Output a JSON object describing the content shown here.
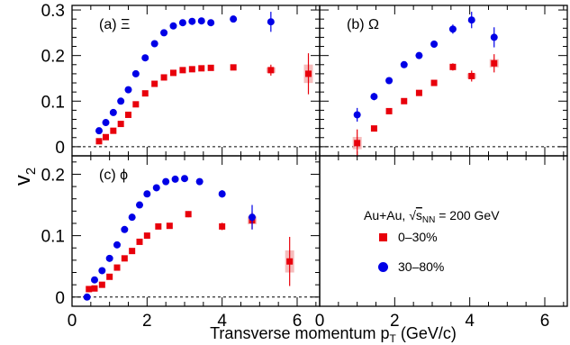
{
  "chart_data": {
    "type": "scatter",
    "xlabel": "Transverse momentum p",
    "xlabel_sub": "T",
    "xlabel_unit": "(GeV/c)",
    "ylabel": "v",
    "ylabel_sub": "2",
    "xlim": [
      0,
      6.6
    ],
    "xticks": [
      "0",
      "2",
      "4",
      "6"
    ],
    "colors": {
      "central": "#e8000b",
      "peripheral": "#0000e6",
      "syst": "#f4b0b0"
    },
    "legend": {
      "system": "Au+Au, ",
      "sqrt": "s",
      "sqrt_sub": "NN",
      "energy": " = 200 GeV",
      "entries": [
        {
          "label": "0–30%",
          "marker": "square",
          "color": "#e8000b"
        },
        {
          "label": "30–80%",
          "marker": "circle",
          "color": "#0000e6"
        }
      ]
    },
    "panels": [
      {
        "label": "(a) Ξ",
        "ylim": [
          -0.02,
          0.31
        ],
        "yticks": [
          "0",
          "0.1",
          "0.2",
          "0.3"
        ],
        "series": [
          {
            "name": "0–30%",
            "marker": "square",
            "points": [
              [
                0.72,
                0.012,
                0.004
              ],
              [
                0.9,
                0.021,
                0.004
              ],
              [
                1.1,
                0.035,
                0.004
              ],
              [
                1.3,
                0.05,
                0.004
              ],
              [
                1.5,
                0.07,
                0.004
              ],
              [
                1.7,
                0.093,
                0.004
              ],
              [
                1.95,
                0.117,
                0.004
              ],
              [
                2.2,
                0.138,
                0.004
              ],
              [
                2.45,
                0.152,
                0.004
              ],
              [
                2.7,
                0.162,
                0.004
              ],
              [
                2.95,
                0.168,
                0.004
              ],
              [
                3.2,
                0.17,
                0.004
              ],
              [
                3.45,
                0.172,
                0.004
              ],
              [
                3.7,
                0.173,
                0.004
              ],
              [
                4.3,
                0.174,
                0.005
              ],
              [
                5.3,
                0.168,
                0.012
              ],
              [
                6.3,
                0.16,
                0.045
              ]
            ]
          },
          {
            "name": "30–80%",
            "marker": "circle",
            "points": [
              [
                0.72,
                0.035,
                0.004
              ],
              [
                0.9,
                0.053,
                0.004
              ],
              [
                1.1,
                0.075,
                0.004
              ],
              [
                1.3,
                0.1,
                0.004
              ],
              [
                1.5,
                0.125,
                0.004
              ],
              [
                1.7,
                0.16,
                0.004
              ],
              [
                1.95,
                0.195,
                0.004
              ],
              [
                2.2,
                0.226,
                0.004
              ],
              [
                2.45,
                0.25,
                0.004
              ],
              [
                2.7,
                0.265,
                0.004
              ],
              [
                2.95,
                0.272,
                0.004
              ],
              [
                3.2,
                0.275,
                0.004
              ],
              [
                3.45,
                0.276,
                0.004
              ],
              [
                3.7,
                0.272,
                0.004
              ],
              [
                4.3,
                0.28,
                0.006
              ],
              [
                5.3,
                0.274,
                0.022
              ]
            ]
          }
        ]
      },
      {
        "label": "(b) Ω",
        "ylim": [
          -0.02,
          0.31
        ],
        "yticks": [],
        "series": [
          {
            "name": "0–30%",
            "marker": "square",
            "points": [
              [
                1.0,
                0.008,
                0.03
              ],
              [
                1.45,
                0.04,
                0.006
              ],
              [
                1.85,
                0.078,
                0.006
              ],
              [
                2.25,
                0.1,
                0.006
              ],
              [
                2.65,
                0.118,
                0.006
              ],
              [
                3.05,
                0.14,
                0.006
              ],
              [
                3.55,
                0.175,
                0.008
              ],
              [
                4.05,
                0.155,
                0.012
              ],
              [
                4.65,
                0.183,
                0.02
              ]
            ]
          },
          {
            "name": "30–80%",
            "marker": "circle",
            "points": [
              [
                1.0,
                0.07,
                0.015
              ],
              [
                1.45,
                0.11,
                0.008
              ],
              [
                1.85,
                0.145,
                0.006
              ],
              [
                2.25,
                0.18,
                0.006
              ],
              [
                2.65,
                0.2,
                0.006
              ],
              [
                3.05,
                0.225,
                0.008
              ],
              [
                3.55,
                0.258,
                0.01
              ],
              [
                4.05,
                0.278,
                0.018
              ],
              [
                4.65,
                0.24,
                0.022
              ]
            ]
          }
        ]
      },
      {
        "label": "(c) ϕ",
        "ylim": [
          -0.015,
          0.23
        ],
        "yticks": [
          "0",
          "0.1",
          "0.2"
        ],
        "series": [
          {
            "name": "0–30%",
            "marker": "square",
            "points": [
              [
                0.45,
                0.013,
                0.005
              ],
              [
                0.6,
                0.014,
                0.004
              ],
              [
                0.8,
                0.02,
                0.004
              ],
              [
                1.0,
                0.033,
                0.004
              ],
              [
                1.2,
                0.048,
                0.004
              ],
              [
                1.4,
                0.063,
                0.004
              ],
              [
                1.6,
                0.075,
                0.004
              ],
              [
                1.8,
                0.09,
                0.004
              ],
              [
                2.0,
                0.1,
                0.004
              ],
              [
                2.3,
                0.115,
                0.004
              ],
              [
                2.6,
                0.116,
                0.004
              ],
              [
                3.1,
                0.135,
                0.005
              ],
              [
                4.0,
                0.115,
                0.006
              ],
              [
                4.8,
                0.125,
                0.014
              ],
              [
                5.8,
                0.058,
                0.04
              ]
            ]
          },
          {
            "name": "30–80%",
            "marker": "circle",
            "points": [
              [
                0.4,
                0.0,
                0.004
              ],
              [
                0.6,
                0.028,
                0.004
              ],
              [
                0.8,
                0.043,
                0.004
              ],
              [
                1.0,
                0.063,
                0.004
              ],
              [
                1.2,
                0.085,
                0.004
              ],
              [
                1.4,
                0.11,
                0.004
              ],
              [
                1.6,
                0.13,
                0.004
              ],
              [
                1.8,
                0.15,
                0.004
              ],
              [
                2.0,
                0.168,
                0.004
              ],
              [
                2.25,
                0.178,
                0.004
              ],
              [
                2.5,
                0.188,
                0.004
              ],
              [
                2.75,
                0.192,
                0.004
              ],
              [
                3.0,
                0.193,
                0.004
              ],
              [
                3.4,
                0.188,
                0.005
              ],
              [
                4.0,
                0.168,
                0.006
              ],
              [
                4.8,
                0.13,
                0.02
              ]
            ]
          }
        ]
      }
    ]
  }
}
